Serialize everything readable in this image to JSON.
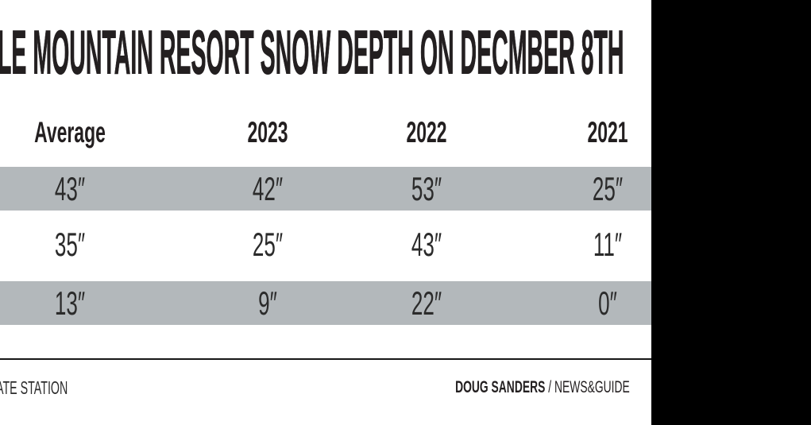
{
  "title": "LE MOUNTAIN RESORT SNOW DEPTH ON DECMBER 8TH",
  "table": {
    "columns": [
      "Average",
      "2023",
      "2022",
      "2021"
    ],
    "rows": [
      {
        "cells": [
          "43″",
          "42″",
          "53″",
          "25″"
        ],
        "shaded": true
      },
      {
        "cells": [
          "35″",
          "25″",
          "43″",
          "11″"
        ],
        "shaded": false
      },
      {
        "cells": [
          "13″",
          "9″",
          "22″",
          "0″"
        ],
        "shaded": true
      }
    ]
  },
  "footer": {
    "source_text": "ATE STATION",
    "credit_name": "DOUG SANDERS",
    "credit_org": "/ NEWS&GUIDE"
  },
  "colors": {
    "row_shade": "#b3b8bb",
    "ink": "#231f20",
    "side_bar": "#000000"
  },
  "chart_data": {
    "type": "table",
    "title": "LE MOUNTAIN RESORT SNOW DEPTH ON DECMBER 8TH",
    "columns": [
      "Average",
      "2023",
      "2022",
      "2021"
    ],
    "rows": [
      [
        43,
        42,
        53,
        25
      ],
      [
        35,
        25,
        43,
        11
      ],
      [
        13,
        9,
        22,
        0
      ]
    ],
    "units": "inches",
    "layout": "left edge of graphic is cropped (row labels and start of title/source line not visible); solid black bar covers right side",
    "credit": "DOUG SANDERS / NEWS&GUIDE"
  }
}
